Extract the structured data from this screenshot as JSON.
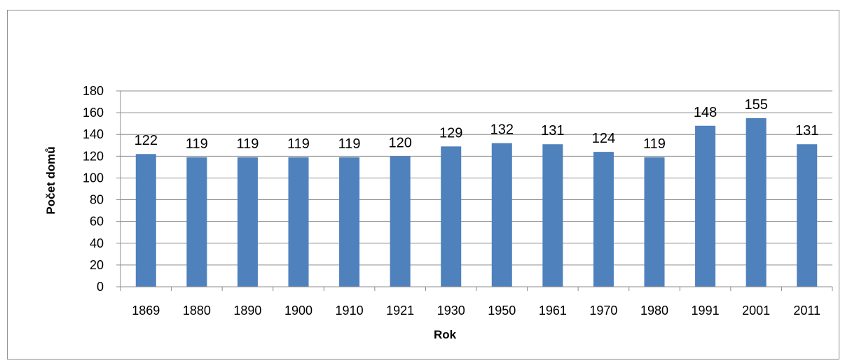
{
  "chart_data": {
    "type": "bar",
    "title": "",
    "xlabel": "Rok",
    "ylabel": "Počet domů",
    "categories": [
      "1869",
      "1880",
      "1890",
      "1900",
      "1910",
      "1921",
      "1930",
      "1950",
      "1961",
      "1970",
      "1980",
      "1991",
      "2001",
      "2011"
    ],
    "values": [
      122,
      119,
      119,
      119,
      119,
      120,
      129,
      132,
      131,
      124,
      119,
      148,
      155,
      131
    ],
    "ylim": [
      0,
      180
    ],
    "yticks": [
      0,
      20,
      40,
      60,
      80,
      100,
      120,
      140,
      160,
      180
    ],
    "grid": true,
    "legend": "none",
    "data_labels": true,
    "bar_color": "#4F81BD",
    "grid_color": "#8c8c8c"
  }
}
